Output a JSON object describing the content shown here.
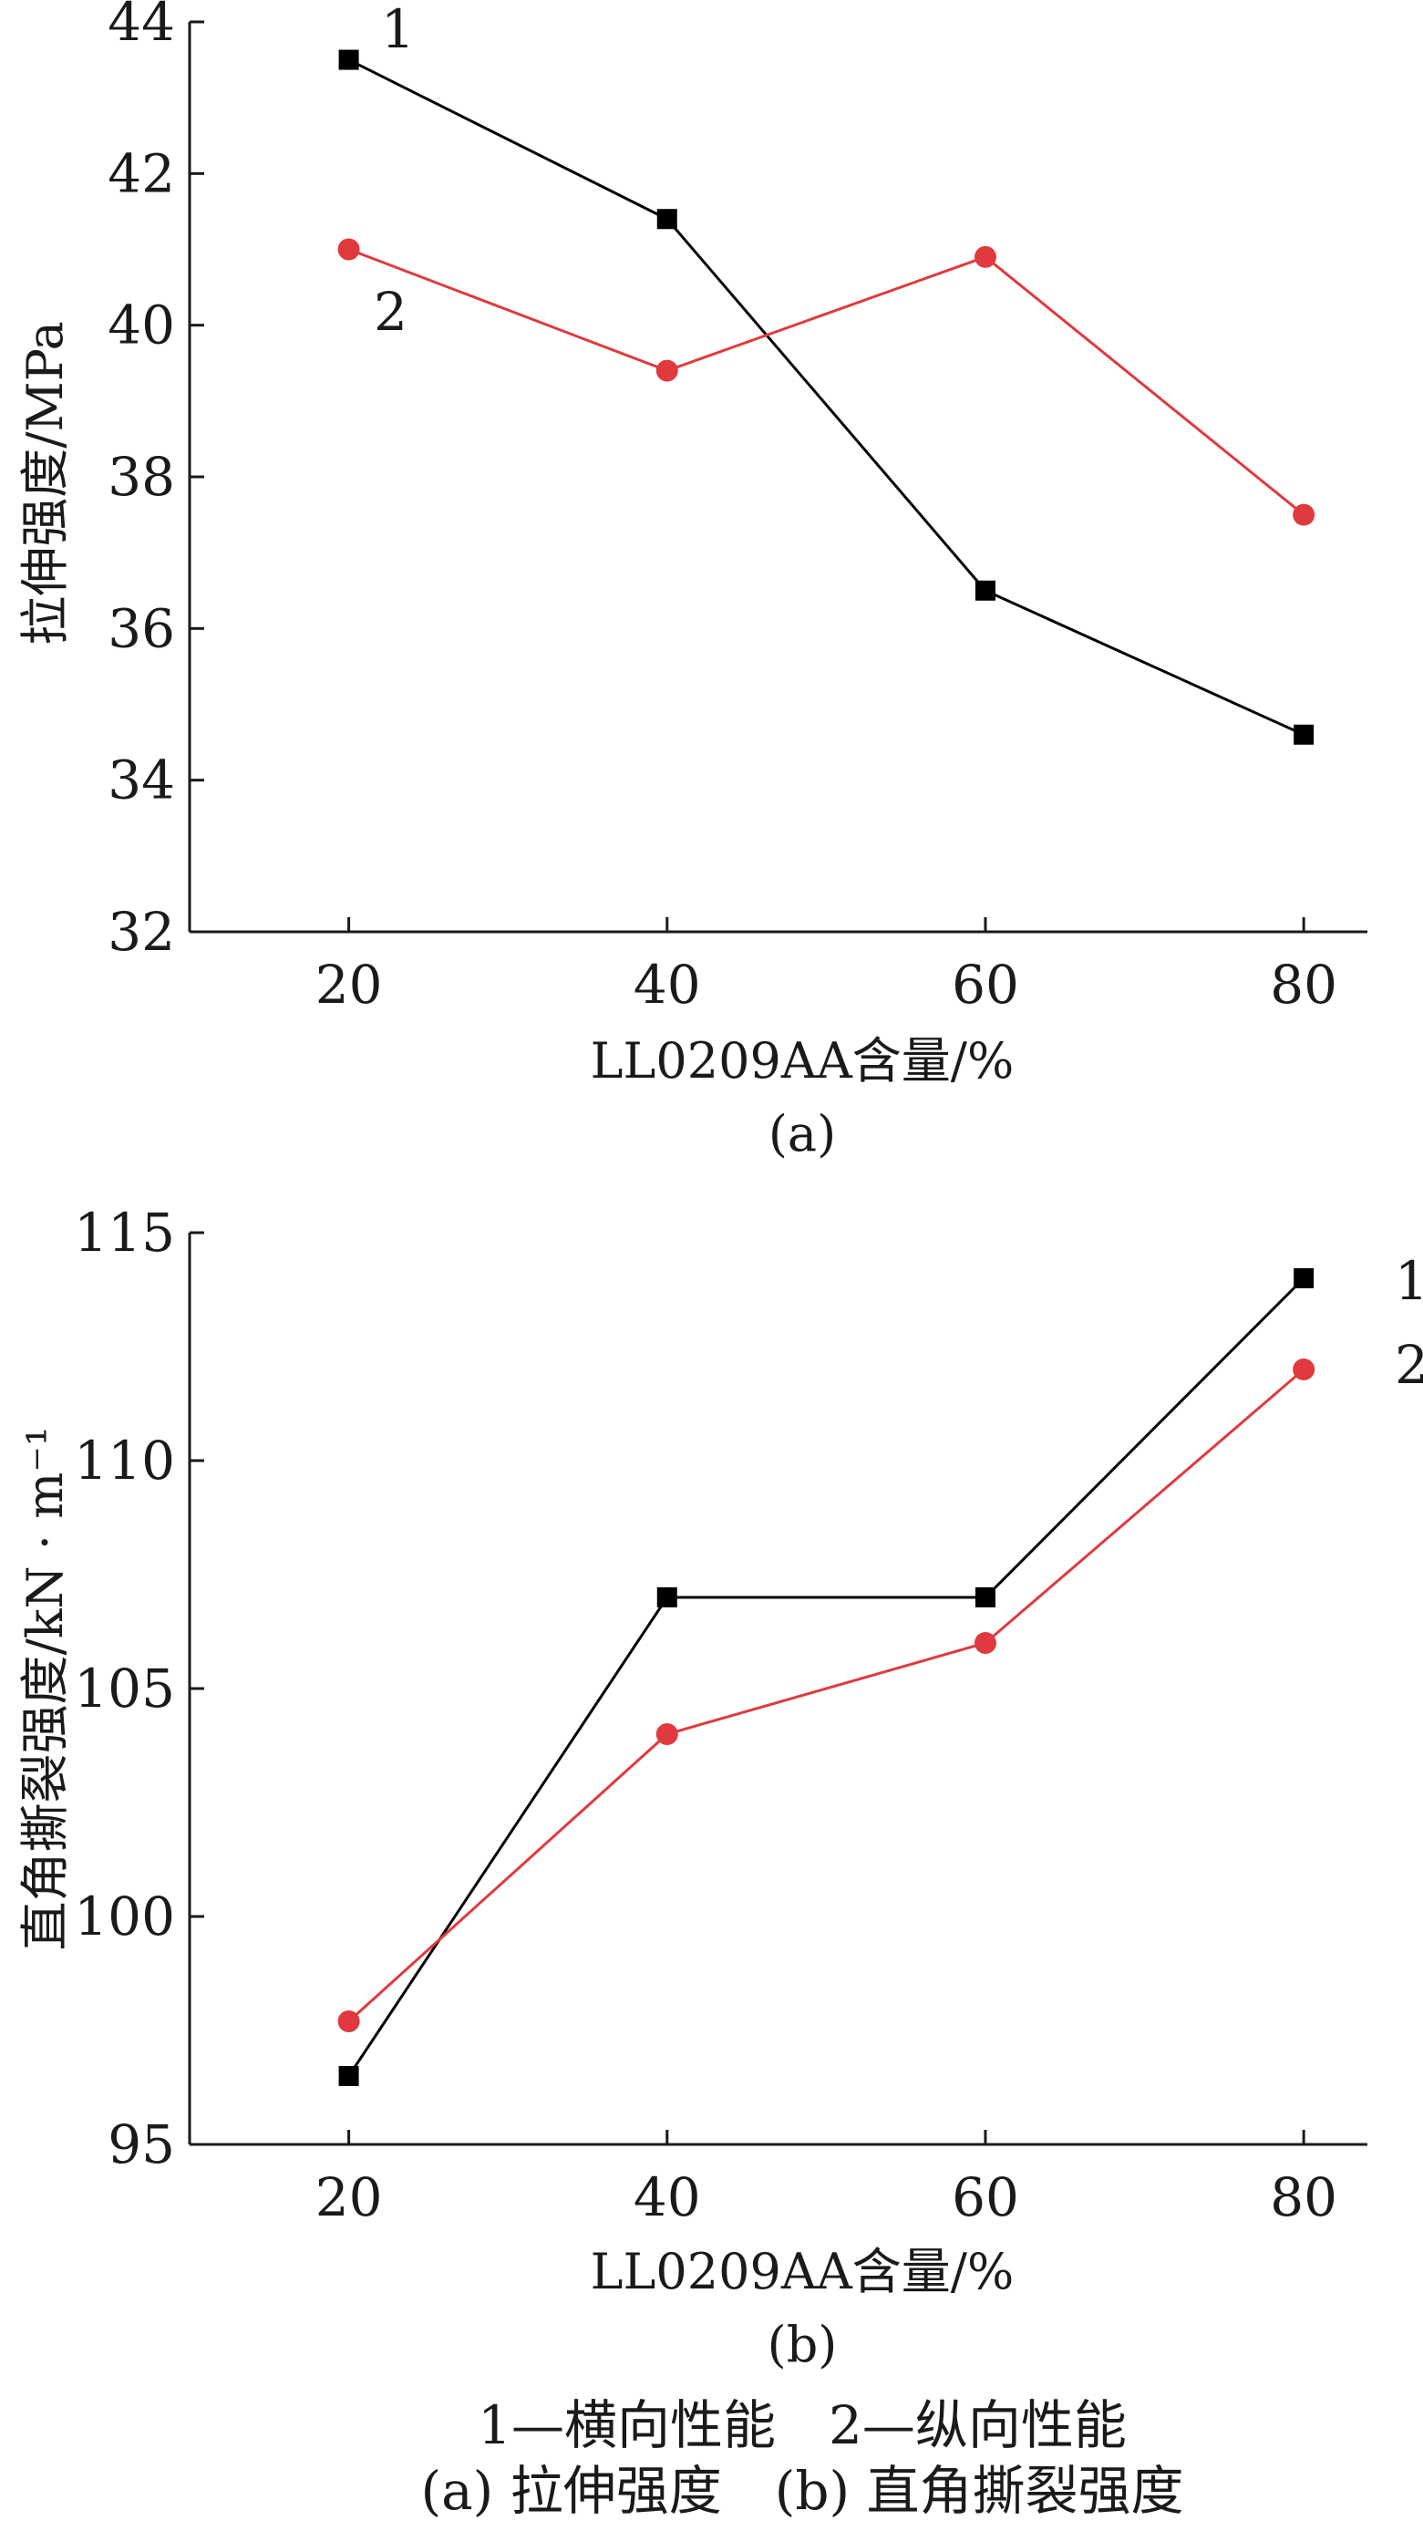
{
  "chart_data": [
    {
      "type": "line",
      "panel_label": "(a)",
      "xlabel": "LL0209AA含量/%",
      "ylabel": "拉伸强度/MPa",
      "x": [
        20,
        40,
        60,
        80
      ],
      "xticks": [
        "20",
        "40",
        "60",
        "80"
      ],
      "yticks": [
        "32",
        "34",
        "36",
        "38",
        "40",
        "42",
        "44"
      ],
      "ylim": [
        32,
        44
      ],
      "xlim": [
        10,
        84
      ],
      "grid": false,
      "series": [
        {
          "name": "1",
          "color": "#000000",
          "marker": "square",
          "values": [
            43.5,
            41.4,
            36.5,
            34.6
          ]
        },
        {
          "name": "2",
          "color": "#e03a3e",
          "marker": "circle",
          "values": [
            41.0,
            39.4,
            40.9,
            37.5
          ]
        }
      ]
    },
    {
      "type": "line",
      "panel_label": "(b)",
      "xlabel": "LL0209AA含量/%",
      "ylabel": "直角撕裂强度/kN · m⁻¹",
      "x": [
        20,
        40,
        60,
        80
      ],
      "xticks": [
        "20",
        "40",
        "60",
        "80"
      ],
      "yticks": [
        "95",
        "100",
        "105",
        "110",
        "115"
      ],
      "ylim": [
        95,
        115
      ],
      "xlim": [
        10,
        84
      ],
      "grid": false,
      "series": [
        {
          "name": "1",
          "color": "#000000",
          "marker": "square",
          "values": [
            96.5,
            107.0,
            107.0,
            114.0
          ]
        },
        {
          "name": "2",
          "color": "#e03a3e",
          "marker": "circle",
          "values": [
            97.7,
            104.0,
            106.0,
            112.0
          ]
        }
      ]
    }
  ],
  "caption": {
    "legend_line": "1—横向性能　2—纵向性能",
    "panels_line": "(a) 拉伸强度　(b) 直角撕裂强度"
  }
}
